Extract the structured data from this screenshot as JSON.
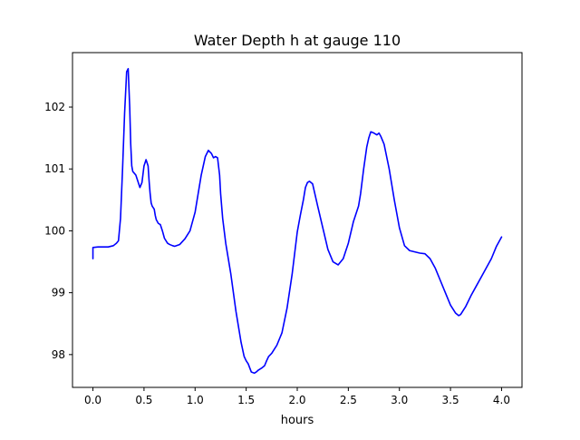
{
  "chart_data": {
    "type": "line",
    "title": "Water Depth h at gauge 110",
    "xlabel": "hours",
    "ylabel": "",
    "xlim": [
      -0.2,
      4.2
    ],
    "ylim": [
      97.47,
      102.88
    ],
    "xticks": [
      0.0,
      0.5,
      1.0,
      1.5,
      2.0,
      2.5,
      3.0,
      3.5,
      4.0
    ],
    "xtick_labels": [
      "0.0",
      "0.5",
      "1.0",
      "1.5",
      "2.0",
      "2.5",
      "3.0",
      "3.5",
      "4.0"
    ],
    "yticks": [
      98,
      99,
      100,
      101,
      102
    ],
    "ytick_labels": [
      "98",
      "99",
      "100",
      "101",
      "102"
    ],
    "grid": false,
    "series": [
      {
        "color": "#0000ff",
        "x": [
          0.0,
          0.0,
          0.05,
          0.1,
          0.15,
          0.2,
          0.23,
          0.25,
          0.27,
          0.29,
          0.31,
          0.33,
          0.345,
          0.36,
          0.37,
          0.38,
          0.39,
          0.4,
          0.42,
          0.44,
          0.46,
          0.48,
          0.5,
          0.52,
          0.54,
          0.55,
          0.56,
          0.57,
          0.58,
          0.6,
          0.61,
          0.62,
          0.64,
          0.66,
          0.68,
          0.7,
          0.73,
          0.75,
          0.78,
          0.8,
          0.85,
          0.9,
          0.95,
          1.0,
          1.03,
          1.06,
          1.1,
          1.13,
          1.16,
          1.18,
          1.2,
          1.22,
          1.24,
          1.25,
          1.27,
          1.3,
          1.35,
          1.4,
          1.45,
          1.48,
          1.5,
          1.52,
          1.55,
          1.58,
          1.6,
          1.62,
          1.65,
          1.68,
          1.7,
          1.72,
          1.75,
          1.8,
          1.85,
          1.9,
          1.95,
          2.0,
          2.03,
          2.06,
          2.08,
          2.1,
          2.12,
          2.15,
          2.2,
          2.25,
          2.3,
          2.35,
          2.4,
          2.45,
          2.5,
          2.55,
          2.6,
          2.62,
          2.65,
          2.68,
          2.7,
          2.72,
          2.75,
          2.78,
          2.8,
          2.82,
          2.85,
          2.9,
          2.95,
          3.0,
          3.05,
          3.1,
          3.15,
          3.2,
          3.25,
          3.3,
          3.35,
          3.4,
          3.45,
          3.5,
          3.55,
          3.58,
          3.6,
          3.65,
          3.7,
          3.75,
          3.8,
          3.85,
          3.9,
          3.95,
          4.0
        ],
        "y": [
          99.55,
          99.73,
          99.74,
          99.74,
          99.74,
          99.76,
          99.8,
          99.84,
          100.2,
          101.0,
          101.9,
          102.57,
          102.62,
          102.0,
          101.4,
          101.05,
          100.96,
          100.94,
          100.9,
          100.8,
          100.7,
          100.78,
          101.05,
          101.15,
          101.05,
          100.8,
          100.6,
          100.45,
          100.4,
          100.35,
          100.25,
          100.18,
          100.12,
          100.1,
          100.0,
          99.88,
          99.8,
          99.78,
          99.76,
          99.75,
          99.78,
          99.87,
          100.0,
          100.3,
          100.6,
          100.9,
          101.2,
          101.3,
          101.25,
          101.18,
          101.2,
          101.18,
          100.9,
          100.6,
          100.2,
          99.8,
          99.3,
          98.7,
          98.2,
          97.97,
          97.9,
          97.85,
          97.72,
          97.7,
          97.72,
          97.75,
          97.78,
          97.82,
          97.9,
          97.97,
          98.02,
          98.15,
          98.35,
          98.75,
          99.3,
          99.98,
          100.25,
          100.5,
          100.7,
          100.78,
          100.8,
          100.76,
          100.4,
          100.05,
          99.7,
          99.5,
          99.45,
          99.55,
          99.8,
          100.15,
          100.4,
          100.6,
          101.0,
          101.35,
          101.5,
          101.6,
          101.58,
          101.55,
          101.58,
          101.52,
          101.4,
          101.0,
          100.5,
          100.05,
          99.76,
          99.68,
          99.66,
          99.64,
          99.63,
          99.55,
          99.4,
          99.2,
          99.0,
          98.8,
          98.67,
          98.63,
          98.65,
          98.78,
          98.95,
          99.1,
          99.25,
          99.4,
          99.55,
          99.75,
          99.9
        ]
      }
    ]
  }
}
